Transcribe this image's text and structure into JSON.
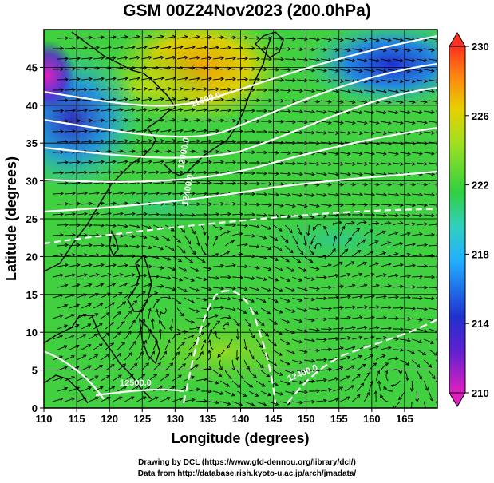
{
  "title": "GSM 00Z24Nov2023 (200.0hPa)",
  "xlabel": "Longitude (degrees)",
  "ylabel": "Latitude (degrees)",
  "credits": [
    "Drawing by DCL (https://www.gfd-dennou.org/library/dcl/)",
    "Data from http://database.rish.kyoto-u.ac.jp/arch/jmadata/"
  ],
  "map": {
    "lon_range": [
      110,
      170
    ],
    "lat_range": [
      0,
      50
    ],
    "x_ticks": [
      "110",
      "115",
      "120",
      "125",
      "130",
      "135",
      "140",
      "145",
      "150",
      "155",
      "160",
      "165"
    ],
    "y_ticks": [
      "0",
      "5",
      "10",
      "15",
      "20",
      "25",
      "30",
      "35",
      "40",
      "45"
    ],
    "grid": true,
    "contour_labels": [
      "11600.0",
      "12000.0",
      "12400.0",
      "12500.0",
      "12400.0"
    ]
  },
  "colorbar": {
    "ticks": [
      "210",
      "214",
      "218",
      "222",
      "226",
      "230"
    ],
    "colors": {
      "min": "#e020c0",
      "low": "#2030d0",
      "cool": "#20b0ff",
      "mid": "#30d040",
      "warm": "#e8d000",
      "max": "#ff3020"
    }
  }
}
